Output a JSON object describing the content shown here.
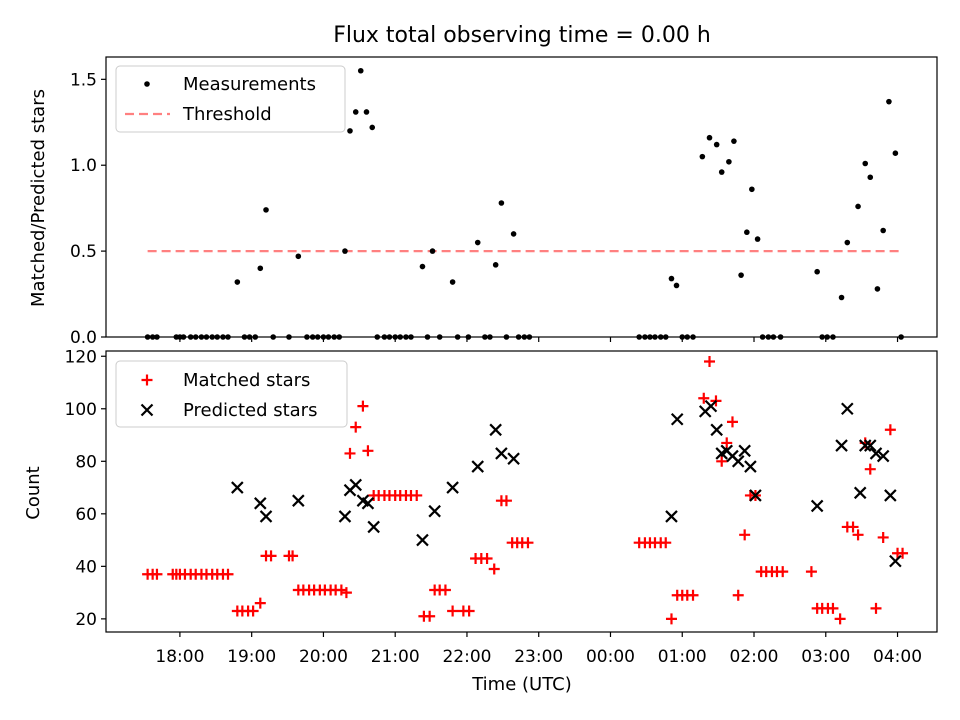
{
  "chart_data": [
    {
      "type": "scatter",
      "panel": "top",
      "title": "Flux total observing time = 0.00 h",
      "xlabel": "",
      "ylabel": "Matched/Predicted stars",
      "ylim": [
        0,
        1.63
      ],
      "yticks": [
        0.0,
        0.5,
        1.0,
        1.5
      ],
      "ytick_labels": [
        "0.0",
        "0.5",
        "1.0",
        "1.5"
      ],
      "legend": [
        "Measurements",
        "Threshold"
      ],
      "legend_position": "upper-left",
      "threshold": {
        "name": "Threshold",
        "value": 0.5,
        "x_start": 17.55,
        "x_end": 28.05,
        "color": "#ff8080"
      },
      "series": [
        {
          "name": "Measurements",
          "marker": "dot",
          "color": "#000000",
          "points": [
            [
              17.55,
              0
            ],
            [
              17.62,
              0
            ],
            [
              17.68,
              0
            ],
            [
              17.95,
              0
            ],
            [
              18.0,
              0
            ],
            [
              18.05,
              0
            ],
            [
              18.15,
              0
            ],
            [
              18.22,
              0
            ],
            [
              18.3,
              0
            ],
            [
              18.37,
              0
            ],
            [
              18.45,
              0
            ],
            [
              18.52,
              0
            ],
            [
              18.6,
              0
            ],
            [
              18.67,
              0
            ],
            [
              18.8,
              0.32
            ],
            [
              18.9,
              0
            ],
            [
              18.97,
              0
            ],
            [
              19.05,
              0
            ],
            [
              19.12,
              0.4
            ],
            [
              19.2,
              0.74
            ],
            [
              19.3,
              0
            ],
            [
              19.52,
              0
            ],
            [
              19.65,
              0.47
            ],
            [
              19.77,
              0
            ],
            [
              19.85,
              0
            ],
            [
              19.92,
              0
            ],
            [
              20.0,
              0
            ],
            [
              20.07,
              0
            ],
            [
              20.15,
              0
            ],
            [
              20.22,
              0
            ],
            [
              20.3,
              0.5
            ],
            [
              20.37,
              1.2
            ],
            [
              20.45,
              1.31
            ],
            [
              20.52,
              1.55
            ],
            [
              20.6,
              1.31
            ],
            [
              20.68,
              1.22
            ],
            [
              20.75,
              0
            ],
            [
              20.85,
              0
            ],
            [
              20.92,
              0
            ],
            [
              21.0,
              0
            ],
            [
              21.07,
              0
            ],
            [
              21.15,
              0
            ],
            [
              21.22,
              0
            ],
            [
              21.38,
              0.41
            ],
            [
              21.45,
              0
            ],
            [
              21.52,
              0.5
            ],
            [
              21.62,
              0
            ],
            [
              21.8,
              0.32
            ],
            [
              21.87,
              0
            ],
            [
              22.02,
              0
            ],
            [
              22.15,
              0.55
            ],
            [
              22.25,
              0
            ],
            [
              22.32,
              0
            ],
            [
              22.4,
              0.42
            ],
            [
              22.48,
              0.78
            ],
            [
              22.55,
              0
            ],
            [
              22.65,
              0.6
            ],
            [
              22.72,
              0
            ],
            [
              22.8,
              0
            ],
            [
              22.87,
              0
            ],
            [
              24.4,
              0
            ],
            [
              24.48,
              0
            ],
            [
              24.55,
              0
            ],
            [
              24.62,
              0
            ],
            [
              24.7,
              0
            ],
            [
              24.77,
              0
            ],
            [
              24.85,
              0.34
            ],
            [
              24.92,
              0.3
            ],
            [
              25.0,
              0
            ],
            [
              25.07,
              0
            ],
            [
              25.15,
              0
            ],
            [
              25.28,
              1.05
            ],
            [
              25.38,
              1.16
            ],
            [
              25.48,
              1.12
            ],
            [
              25.55,
              0.96
            ],
            [
              25.65,
              1.02
            ],
            [
              25.72,
              1.14
            ],
            [
              25.82,
              0.36
            ],
            [
              25.9,
              0.61
            ],
            [
              25.97,
              0.86
            ],
            [
              26.05,
              0.57
            ],
            [
              26.12,
              0
            ],
            [
              26.2,
              0
            ],
            [
              26.27,
              0
            ],
            [
              26.37,
              0
            ],
            [
              26.88,
              0.38
            ],
            [
              26.95,
              0
            ],
            [
              27.02,
              0
            ],
            [
              27.1,
              0
            ],
            [
              27.22,
              0.23
            ],
            [
              27.3,
              0.55
            ],
            [
              27.45,
              0.76
            ],
            [
              27.55,
              1.01
            ],
            [
              27.62,
              0.93
            ],
            [
              27.72,
              0.28
            ],
            [
              27.8,
              0.62
            ],
            [
              27.88,
              1.37
            ],
            [
              27.97,
              1.07
            ],
            [
              28.05,
              0
            ]
          ]
        }
      ]
    },
    {
      "type": "scatter",
      "panel": "bottom",
      "xlabel": "Time (UTC)",
      "ylabel": "Count",
      "xlim": [
        16.97,
        28.55
      ],
      "ylim": [
        15,
        122
      ],
      "yticks": [
        20,
        40,
        60,
        80,
        100,
        120
      ],
      "ytick_labels": [
        "20",
        "40",
        "60",
        "80",
        "100",
        "120"
      ],
      "xticks": [
        18,
        19,
        20,
        21,
        22,
        23,
        24,
        25,
        26,
        27,
        28
      ],
      "xtick_labels": [
        "18:00",
        "19:00",
        "20:00",
        "21:00",
        "22:00",
        "23:00",
        "00:00",
        "01:00",
        "02:00",
        "03:00",
        "04:00"
      ],
      "legend": [
        "Matched stars",
        "Predicted stars"
      ],
      "legend_position": "upper-left",
      "series": [
        {
          "name": "Matched stars",
          "marker": "plus",
          "color": "#ff0000",
          "points": [
            [
              17.55,
              37
            ],
            [
              17.62,
              37
            ],
            [
              17.68,
              37
            ],
            [
              17.9,
              37
            ],
            [
              17.95,
              37
            ],
            [
              18.0,
              37
            ],
            [
              18.07,
              37
            ],
            [
              18.15,
              37
            ],
            [
              18.22,
              37
            ],
            [
              18.3,
              37
            ],
            [
              18.37,
              37
            ],
            [
              18.45,
              37
            ],
            [
              18.52,
              37
            ],
            [
              18.6,
              37
            ],
            [
              18.67,
              37
            ],
            [
              18.8,
              23
            ],
            [
              18.87,
              23
            ],
            [
              18.95,
              23
            ],
            [
              19.02,
              23
            ],
            [
              19.12,
              26
            ],
            [
              19.2,
              44
            ],
            [
              19.27,
              44
            ],
            [
              19.52,
              44
            ],
            [
              19.57,
              44
            ],
            [
              19.65,
              31
            ],
            [
              19.72,
              31
            ],
            [
              19.8,
              31
            ],
            [
              19.87,
              31
            ],
            [
              19.95,
              31
            ],
            [
              20.02,
              31
            ],
            [
              20.1,
              31
            ],
            [
              20.17,
              31
            ],
            [
              20.25,
              31
            ],
            [
              20.32,
              30
            ],
            [
              20.37,
              83
            ],
            [
              20.45,
              93
            ],
            [
              20.55,
              101
            ],
            [
              20.62,
              84
            ],
            [
              20.7,
              67
            ],
            [
              20.77,
              67
            ],
            [
              20.85,
              67
            ],
            [
              20.92,
              67
            ],
            [
              21.0,
              67
            ],
            [
              21.07,
              67
            ],
            [
              21.15,
              67
            ],
            [
              21.22,
              67
            ],
            [
              21.3,
              67
            ],
            [
              21.4,
              21
            ],
            [
              21.48,
              21
            ],
            [
              21.55,
              31
            ],
            [
              21.62,
              31
            ],
            [
              21.7,
              31
            ],
            [
              21.8,
              23
            ],
            [
              21.95,
              23
            ],
            [
              22.03,
              23
            ],
            [
              22.12,
              43
            ],
            [
              22.2,
              43
            ],
            [
              22.28,
              43
            ],
            [
              22.38,
              39
            ],
            [
              22.48,
              65
            ],
            [
              22.55,
              65
            ],
            [
              22.63,
              49
            ],
            [
              22.7,
              49
            ],
            [
              22.77,
              49
            ],
            [
              22.85,
              49
            ],
            [
              24.4,
              49
            ],
            [
              24.48,
              49
            ],
            [
              24.55,
              49
            ],
            [
              24.62,
              49
            ],
            [
              24.7,
              49
            ],
            [
              24.77,
              49
            ],
            [
              24.85,
              20
            ],
            [
              24.93,
              29
            ],
            [
              25.0,
              29
            ],
            [
              25.07,
              29
            ],
            [
              25.15,
              29
            ],
            [
              25.3,
              104
            ],
            [
              25.38,
              118
            ],
            [
              25.47,
              103
            ],
            [
              25.55,
              80
            ],
            [
              25.62,
              87
            ],
            [
              25.7,
              95
            ],
            [
              25.78,
              29
            ],
            [
              25.87,
              52
            ],
            [
              25.95,
              67
            ],
            [
              26.02,
              67
            ],
            [
              26.1,
              38
            ],
            [
              26.17,
              38
            ],
            [
              26.25,
              38
            ],
            [
              26.32,
              38
            ],
            [
              26.4,
              38
            ],
            [
              26.8,
              38
            ],
            [
              26.88,
              24
            ],
            [
              26.95,
              24
            ],
            [
              27.03,
              24
            ],
            [
              27.1,
              24
            ],
            [
              27.2,
              20
            ],
            [
              27.3,
              55
            ],
            [
              27.38,
              55
            ],
            [
              27.45,
              52
            ],
            [
              27.55,
              87
            ],
            [
              27.62,
              77
            ],
            [
              27.7,
              24
            ],
            [
              27.8,
              51
            ],
            [
              27.9,
              92
            ],
            [
              28.0,
              45
            ],
            [
              28.07,
              45
            ]
          ]
        },
        {
          "name": "Predicted stars",
          "marker": "x",
          "color": "#000000",
          "points": [
            [
              18.8,
              70
            ],
            [
              19.12,
              64
            ],
            [
              19.2,
              59
            ],
            [
              19.65,
              65
            ],
            [
              20.3,
              59
            ],
            [
              20.37,
              69
            ],
            [
              20.45,
              71
            ],
            [
              20.55,
              65
            ],
            [
              20.62,
              64
            ],
            [
              20.7,
              55
            ],
            [
              21.38,
              50
            ],
            [
              21.55,
              61
            ],
            [
              21.8,
              70
            ],
            [
              22.15,
              78
            ],
            [
              22.4,
              92
            ],
            [
              22.48,
              83
            ],
            [
              22.65,
              81
            ],
            [
              24.85,
              59
            ],
            [
              24.93,
              96
            ],
            [
              25.32,
              99
            ],
            [
              25.4,
              101
            ],
            [
              25.48,
              92
            ],
            [
              25.55,
              83
            ],
            [
              25.62,
              84
            ],
            [
              25.7,
              82
            ],
            [
              25.78,
              80
            ],
            [
              25.87,
              84
            ],
            [
              25.95,
              78
            ],
            [
              26.02,
              67
            ],
            [
              26.88,
              63
            ],
            [
              27.22,
              86
            ],
            [
              27.3,
              100
            ],
            [
              27.48,
              68
            ],
            [
              27.55,
              86
            ],
            [
              27.62,
              86
            ],
            [
              27.7,
              83
            ],
            [
              27.8,
              82
            ],
            [
              27.9,
              67
            ],
            [
              27.97,
              42
            ]
          ]
        }
      ]
    }
  ]
}
